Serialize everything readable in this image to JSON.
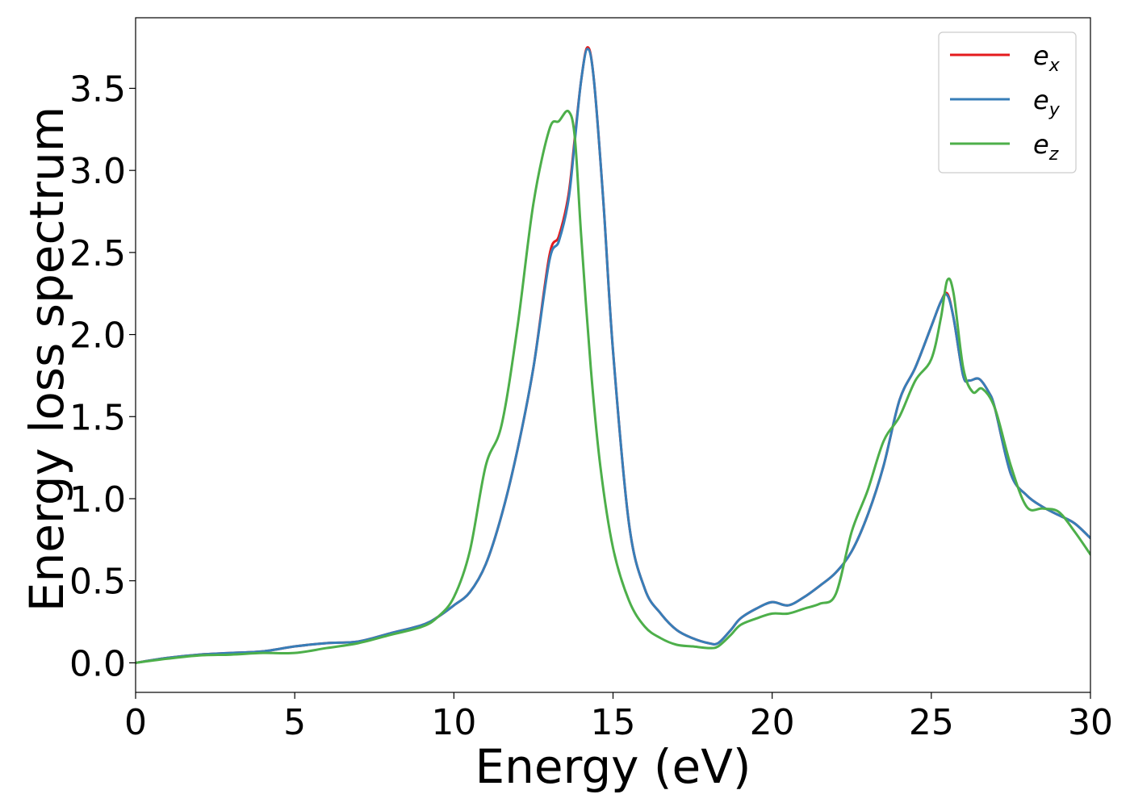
{
  "chart_data": {
    "type": "line",
    "title": "",
    "xlabel": "Energy (eV)",
    "ylabel": "Energy loss spectrum",
    "xlim": [
      0,
      30
    ],
    "ylim": [
      -0.18,
      3.93
    ],
    "xticks": [
      0,
      5,
      10,
      15,
      20,
      25,
      30
    ],
    "xtick_labels": [
      "0",
      "5",
      "10",
      "15",
      "20",
      "25",
      "30"
    ],
    "yticks": [
      0.0,
      0.5,
      1.0,
      1.5,
      2.0,
      2.5,
      3.0,
      3.5
    ],
    "ytick_labels": [
      "0.0",
      "0.5",
      "1.0",
      "1.5",
      "2.0",
      "2.5",
      "3.0",
      "3.5"
    ],
    "grid": false,
    "legend_position": "top-right",
    "series": [
      {
        "name": "e_x",
        "legend_base": "e",
        "legend_sub": "x",
        "color": "#e41a1c",
        "x": [
          0,
          1,
          2,
          3,
          4,
          5,
          6,
          7,
          8,
          9,
          9.5,
          10,
          10.5,
          11,
          11.5,
          12,
          12.5,
          13,
          13.3,
          13.6,
          13.8,
          14.0,
          14.2,
          14.4,
          14.7,
          15.0,
          15.5,
          16.0,
          16.5,
          17,
          17.5,
          18,
          18.3,
          18.7,
          19,
          19.5,
          20,
          20.5,
          21,
          21.5,
          22,
          22.5,
          23,
          23.5,
          24,
          24.5,
          25,
          25.3,
          25.5,
          25.7,
          26,
          26.2,
          26.5,
          26.8,
          27,
          27.5,
          28,
          28.5,
          29,
          29.5,
          30
        ],
        "y": [
          0.0,
          0.03,
          0.05,
          0.06,
          0.07,
          0.1,
          0.12,
          0.13,
          0.18,
          0.23,
          0.28,
          0.35,
          0.43,
          0.6,
          0.9,
          1.3,
          1.8,
          2.48,
          2.6,
          2.85,
          3.2,
          3.55,
          3.75,
          3.55,
          2.8,
          1.9,
          0.85,
          0.45,
          0.3,
          0.2,
          0.15,
          0.12,
          0.12,
          0.2,
          0.27,
          0.33,
          0.37,
          0.35,
          0.4,
          0.47,
          0.55,
          0.68,
          0.9,
          1.2,
          1.6,
          1.8,
          2.05,
          2.2,
          2.25,
          2.1,
          1.75,
          1.72,
          1.73,
          1.65,
          1.55,
          1.15,
          1.02,
          0.95,
          0.9,
          0.85,
          0.76
        ]
      },
      {
        "name": "e_y",
        "legend_base": "e",
        "legend_sub": "y",
        "color": "#377eb8",
        "x": [
          0,
          1,
          2,
          3,
          4,
          5,
          6,
          7,
          8,
          9,
          9.5,
          10,
          10.5,
          11,
          11.5,
          12,
          12.5,
          13,
          13.3,
          13.6,
          13.8,
          14.0,
          14.2,
          14.4,
          14.7,
          15.0,
          15.5,
          16.0,
          16.5,
          17,
          17.5,
          18,
          18.3,
          18.7,
          19,
          19.5,
          20,
          20.5,
          21,
          21.5,
          22,
          22.5,
          23,
          23.5,
          24,
          24.5,
          25,
          25.3,
          25.5,
          25.7,
          26,
          26.2,
          26.5,
          26.8,
          27,
          27.5,
          28,
          28.5,
          29,
          29.5,
          30
        ],
        "y": [
          0.0,
          0.03,
          0.05,
          0.06,
          0.07,
          0.1,
          0.12,
          0.13,
          0.18,
          0.23,
          0.28,
          0.35,
          0.43,
          0.6,
          0.9,
          1.3,
          1.8,
          2.45,
          2.57,
          2.82,
          3.18,
          3.55,
          3.74,
          3.55,
          2.8,
          1.9,
          0.85,
          0.45,
          0.3,
          0.2,
          0.15,
          0.12,
          0.12,
          0.2,
          0.27,
          0.33,
          0.37,
          0.35,
          0.4,
          0.47,
          0.55,
          0.68,
          0.9,
          1.2,
          1.6,
          1.8,
          2.05,
          2.2,
          2.24,
          2.1,
          1.75,
          1.72,
          1.73,
          1.65,
          1.55,
          1.15,
          1.02,
          0.95,
          0.9,
          0.85,
          0.76
        ]
      },
      {
        "name": "e_z",
        "legend_base": "e",
        "legend_sub": "z",
        "color": "#4daf4a",
        "x": [
          0,
          1,
          2,
          3,
          4,
          5,
          6,
          7,
          8,
          9,
          9.5,
          10,
          10.5,
          11,
          11.5,
          12,
          12.5,
          13,
          13.3,
          13.6,
          13.8,
          14.0,
          14.3,
          14.6,
          15.0,
          15.5,
          16.0,
          16.5,
          17,
          17.5,
          18,
          18.3,
          18.7,
          19,
          19.5,
          20,
          20.5,
          21,
          21.5,
          22,
          22.5,
          23,
          23.5,
          24,
          24.5,
          25,
          25.3,
          25.5,
          25.7,
          26,
          26.3,
          26.6,
          27,
          27.5,
          28,
          28.5,
          29,
          29.5,
          30
        ],
        "y": [
          0.0,
          0.025,
          0.045,
          0.05,
          0.06,
          0.06,
          0.09,
          0.12,
          0.17,
          0.22,
          0.28,
          0.4,
          0.68,
          1.2,
          1.45,
          2.05,
          2.8,
          3.25,
          3.3,
          3.36,
          3.2,
          2.6,
          1.8,
          1.2,
          0.7,
          0.38,
          0.22,
          0.15,
          0.11,
          0.1,
          0.09,
          0.1,
          0.17,
          0.23,
          0.27,
          0.3,
          0.3,
          0.33,
          0.36,
          0.42,
          0.8,
          1.05,
          1.35,
          1.5,
          1.72,
          1.85,
          2.1,
          2.33,
          2.25,
          1.8,
          1.65,
          1.67,
          1.55,
          1.2,
          0.95,
          0.94,
          0.92,
          0.8,
          0.66
        ]
      }
    ]
  }
}
